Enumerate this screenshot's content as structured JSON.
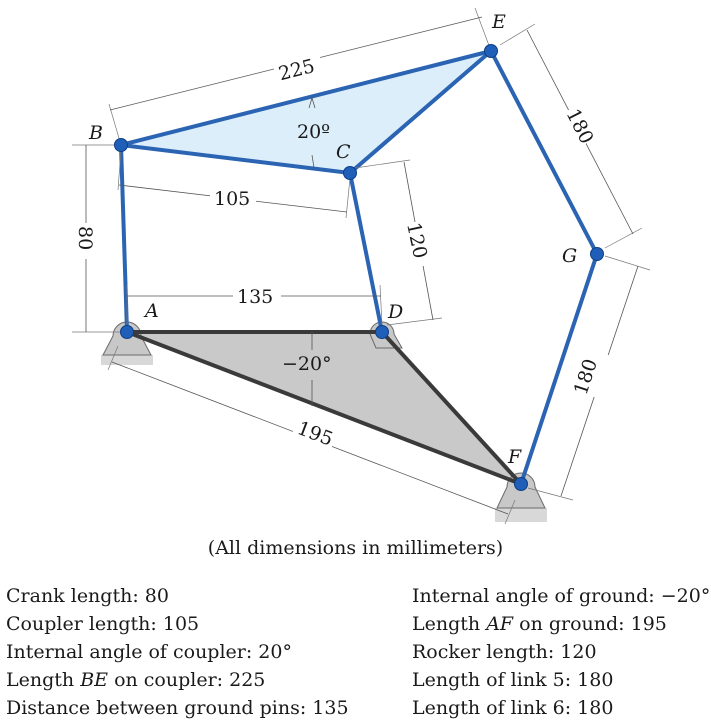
{
  "points": {
    "A": "A",
    "B": "B",
    "C": "C",
    "D": "D",
    "E": "E",
    "F": "F",
    "G": "G"
  },
  "dimensions": {
    "be": "225",
    "coupler_angle": "20º",
    "bc": "105",
    "ab": "80",
    "cd": "120",
    "ad": "135",
    "ground_angle": "−20°",
    "af": "195",
    "eg": "180",
    "gf": "180"
  },
  "caption": "(All dimensions in millimeters)",
  "specs_left": [
    {
      "text": "Crank length: 80"
    },
    {
      "text": "Coupler length: 105"
    },
    {
      "text": "Internal angle of coupler: 20°"
    },
    {
      "text": "Length BE on coupler: 225"
    },
    {
      "text": "Distance between ground pins: 135"
    }
  ],
  "specs_right": [
    {
      "text": "Internal angle of ground: −20°"
    },
    {
      "text": "Length AF on ground: 195"
    },
    {
      "text": "Rocker length: 120"
    },
    {
      "text": "Length of link 5: 180"
    },
    {
      "text": "Length of link 6: 180"
    }
  ],
  "colors": {
    "link": "#2b64b3",
    "pin": "#1f5fb8",
    "coupler_fill": "#dceefa",
    "ground_fill": "#c9c9c9"
  }
}
